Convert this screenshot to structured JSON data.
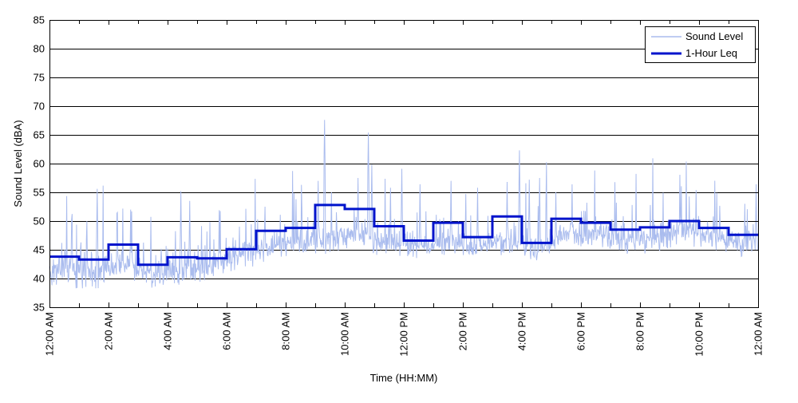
{
  "axes": {
    "xlabel": "Time (HH:MM)",
    "ylabel": "Sound Level (dBA)"
  },
  "colors": {
    "background": "#ffffff",
    "grid": "#000000",
    "axis_box": "#000000",
    "sound_level_line": "#aabcee",
    "leq_line": "#0013cc",
    "legend_border": "#000000",
    "legend_fill": "#ffffff"
  },
  "legend": {
    "position": "top-right",
    "entries": [
      "Sound Level",
      "1-Hour Leq"
    ]
  },
  "chart_data": {
    "type": "line",
    "title": "",
    "xlabel": "Time (HH:MM)",
    "ylabel": "Sound Level (dBA)",
    "x_unit": "hours",
    "xlim": [
      0,
      24
    ],
    "ylim": [
      35,
      85
    ],
    "grid": "horizontal-solid-black",
    "legend_position": "top-right",
    "ytick_values": [
      35,
      40,
      45,
      50,
      55,
      60,
      65,
      70,
      75,
      80,
      85
    ],
    "xtick_hours": [
      0,
      2,
      4,
      6,
      8,
      10,
      12,
      14,
      16,
      18,
      20,
      22,
      24
    ],
    "xtick_labels": [
      "12:00 AM",
      "2:00 AM",
      "4:00 AM",
      "6:00 AM",
      "8:00 AM",
      "10:00 AM",
      "12:00 PM",
      "2:00 PM",
      "4:00 PM",
      "6:00 PM",
      "8:00 PM",
      "10:00 PM",
      "12:00 AM"
    ],
    "minor_xtick_every_hours": 1,
    "series": [
      {
        "name": "Sound Level",
        "type": "noisy_line",
        "color": "#aabcee",
        "line_width": 1,
        "sample_interval_minutes": 1,
        "hourly_median_dba": [
          41.8,
          41.3,
          42.8,
          40.8,
          41.5,
          42.3,
          43.8,
          45.8,
          46.8,
          47.0,
          47.2,
          46.0,
          45.2,
          46.3,
          45.5,
          46.8,
          45.0,
          47.8,
          47.8,
          46.8,
          47.0,
          48.5,
          47.3,
          45.8
        ],
        "noise_amplitude_dba": 2.7,
        "floor_dba": 38.3,
        "notable_spikes_hour_value": [
          [
            0.75,
            50.3
          ],
          [
            1.62,
            55.6
          ],
          [
            2.3,
            51.5
          ],
          [
            2.75,
            52.0
          ],
          [
            4.45,
            55.2
          ],
          [
            4.75,
            53.5
          ],
          [
            5.75,
            51.9
          ],
          [
            7.3,
            52.5
          ],
          [
            8.35,
            53.8
          ],
          [
            9.1,
            57.0
          ],
          [
            9.31,
            67.6
          ],
          [
            9.55,
            55.0
          ],
          [
            10.45,
            57.5
          ],
          [
            10.8,
            65.4
          ],
          [
            10.92,
            59.8
          ],
          [
            11.55,
            55.8
          ],
          [
            11.93,
            59.1
          ],
          [
            12.55,
            56.4
          ],
          [
            13.6,
            57.0
          ],
          [
            14.1,
            54.7
          ],
          [
            14.5,
            55.8
          ],
          [
            15.5,
            56.8
          ],
          [
            15.92,
            62.3
          ],
          [
            16.25,
            57.2
          ],
          [
            16.6,
            57.5
          ],
          [
            17.15,
            55.0
          ],
          [
            17.7,
            56.4
          ],
          [
            19.2,
            53.2
          ],
          [
            20.35,
            52.8
          ],
          [
            21.9,
            55.4
          ],
          [
            23.55,
            53.0
          ],
          [
            23.93,
            56.4
          ]
        ]
      },
      {
        "name": "1-Hour Leq",
        "type": "step_line",
        "color": "#0013cc",
        "line_width": 3,
        "hourly_leq_dba": [
          43.8,
          43.3,
          45.9,
          42.4,
          43.7,
          43.5,
          45.1,
          48.3,
          48.8,
          52.8,
          52.1,
          49.1,
          46.6,
          49.7,
          47.2,
          50.8,
          46.2,
          50.4,
          49.7,
          48.5,
          48.9,
          50.0,
          48.8,
          47.6
        ]
      }
    ]
  }
}
